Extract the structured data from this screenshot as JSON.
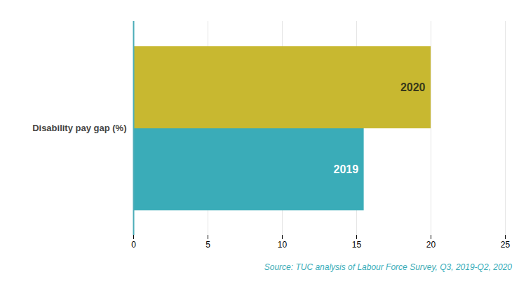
{
  "chart_data": {
    "type": "bar",
    "orientation": "horizontal",
    "categories": [
      "2020",
      "2019"
    ],
    "values": [
      20.0,
      15.5
    ],
    "colors": [
      "#C8B830",
      "#3AACB8"
    ],
    "ylabel": "Disability pay gap (%)",
    "xlim": [
      0,
      25
    ],
    "xticks": [
      0,
      5,
      10,
      15,
      20,
      25
    ],
    "grid": true,
    "annotations": [
      "Source: TUC analysis of Labour Force Survey, Q3, 2019-Q2, 2020"
    ]
  }
}
